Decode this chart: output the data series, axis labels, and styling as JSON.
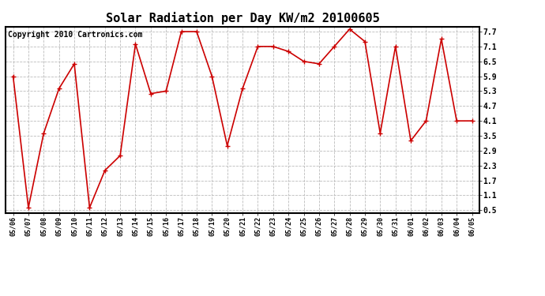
{
  "title": "Solar Radiation per Day KW/m2 20100605",
  "copyright_text": "Copyright 2010 Cartronics.com",
  "dates": [
    "05/06",
    "05/07",
    "05/08",
    "05/09",
    "05/10",
    "05/11",
    "05/12",
    "05/13",
    "05/14",
    "05/15",
    "05/16",
    "05/17",
    "05/18",
    "05/19",
    "05/20",
    "05/21",
    "05/22",
    "05/23",
    "05/24",
    "05/25",
    "05/26",
    "05/27",
    "05/28",
    "05/29",
    "05/30",
    "05/31",
    "06/01",
    "06/02",
    "06/03",
    "06/04",
    "06/05"
  ],
  "values": [
    5.9,
    0.6,
    3.6,
    5.4,
    6.4,
    0.6,
    2.1,
    2.7,
    7.2,
    5.2,
    5.3,
    7.7,
    7.7,
    5.9,
    3.1,
    5.4,
    7.1,
    7.1,
    6.9,
    6.5,
    6.4,
    7.1,
    7.8,
    7.3,
    3.6,
    7.1,
    3.3,
    4.1,
    7.4,
    4.1,
    4.1
  ],
  "line_color": "#cc0000",
  "marker": "+",
  "marker_size": 4,
  "bg_color": "#ffffff",
  "plot_bg_color": "#ffffff",
  "grid_color": "#bbbbbb",
  "yticks": [
    0.5,
    1.1,
    1.7,
    2.3,
    2.9,
    3.5,
    4.1,
    4.7,
    5.3,
    5.9,
    6.5,
    7.1,
    7.7
  ],
  "ylim": [
    0.38,
    7.9
  ],
  "title_fontsize": 11,
  "copyright_fontsize": 7,
  "xtick_fontsize": 6,
  "ytick_fontsize": 7
}
